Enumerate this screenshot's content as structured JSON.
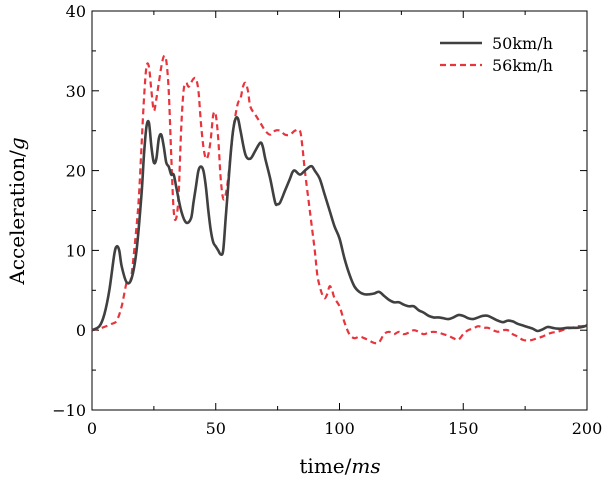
{
  "chart_data": {
    "type": "line",
    "title": "",
    "xlabel": {
      "main": "time/",
      "unit": "ms"
    },
    "ylabel": {
      "main": "Acceleration/",
      "unit": "g"
    },
    "xlim": [
      0,
      200
    ],
    "ylim": [
      -10,
      40
    ],
    "x_ticks": [
      0,
      50,
      100,
      150,
      200
    ],
    "y_ticks": [
      -10,
      0,
      10,
      20,
      30,
      40
    ],
    "x_tick_labels": [
      "0",
      "50",
      "100",
      "150",
      "200"
    ],
    "y_tick_labels": [
      "−10",
      "0",
      "10",
      "20",
      "30",
      "40"
    ],
    "grid": false,
    "legend_position": "top-right",
    "series": [
      {
        "name": "50km/h",
        "color": "#404040",
        "style": "solid",
        "points": [
          [
            0,
            0
          ],
          [
            3,
            0.5
          ],
          [
            5,
            2
          ],
          [
            7,
            5
          ],
          [
            9,
            9.5
          ],
          [
            10,
            10.5
          ],
          [
            11,
            10
          ],
          [
            12,
            8
          ],
          [
            14,
            6
          ],
          [
            16,
            6.5
          ],
          [
            18,
            10
          ],
          [
            20,
            17
          ],
          [
            21,
            22
          ],
          [
            22,
            25.5
          ],
          [
            23,
            26
          ],
          [
            24,
            23
          ],
          [
            25,
            21
          ],
          [
            26,
            21.5
          ],
          [
            27,
            24
          ],
          [
            28,
            24.5
          ],
          [
            29,
            23
          ],
          [
            30,
            21
          ],
          [
            31,
            20.5
          ],
          [
            32,
            19.5
          ],
          [
            33,
            19.5
          ],
          [
            34,
            18
          ],
          [
            36,
            15
          ],
          [
            38,
            13.5
          ],
          [
            40,
            14
          ],
          [
            41,
            16
          ],
          [
            42,
            18
          ],
          [
            43,
            20
          ],
          [
            44,
            20.5
          ],
          [
            45,
            20
          ],
          [
            46,
            18
          ],
          [
            47,
            15
          ],
          [
            48,
            12.5
          ],
          [
            49,
            11
          ],
          [
            50,
            10.5
          ],
          [
            51,
            10
          ],
          [
            52,
            9.5
          ],
          [
            53,
            10
          ],
          [
            54,
            14
          ],
          [
            55,
            18
          ],
          [
            56,
            22
          ],
          [
            57,
            25
          ],
          [
            58,
            26.5
          ],
          [
            59,
            26.5
          ],
          [
            60,
            25
          ],
          [
            62,
            22
          ],
          [
            64,
            21.5
          ],
          [
            66,
            22.5
          ],
          [
            68,
            23.5
          ],
          [
            69,
            23
          ],
          [
            70,
            21.5
          ],
          [
            72,
            19
          ],
          [
            74,
            16
          ],
          [
            75,
            15.8
          ],
          [
            76,
            16
          ],
          [
            78,
            17.5
          ],
          [
            80,
            19
          ],
          [
            81,
            19.8
          ],
          [
            82,
            20
          ],
          [
            84,
            19.5
          ],
          [
            86,
            20
          ],
          [
            88,
            20.5
          ],
          [
            89,
            20.5
          ],
          [
            90,
            20
          ],
          [
            92,
            19
          ],
          [
            94,
            17
          ],
          [
            96,
            15
          ],
          [
            98,
            13
          ],
          [
            100,
            11.5
          ],
          [
            102,
            9
          ],
          [
            104,
            7
          ],
          [
            106,
            5.5
          ],
          [
            108,
            4.8
          ],
          [
            110,
            4.5
          ],
          [
            112,
            4.5
          ],
          [
            114,
            4.6
          ],
          [
            116,
            4.8
          ],
          [
            118,
            4.3
          ],
          [
            120,
            3.8
          ],
          [
            122,
            3.5
          ],
          [
            124,
            3.5
          ],
          [
            126,
            3.2
          ],
          [
            128,
            3
          ],
          [
            130,
            3
          ],
          [
            132,
            2.5
          ],
          [
            134,
            2.2
          ],
          [
            136,
            1.8
          ],
          [
            138,
            1.6
          ],
          [
            140,
            1.6
          ],
          [
            142,
            1.5
          ],
          [
            144,
            1.4
          ],
          [
            146,
            1.6
          ],
          [
            148,
            1.9
          ],
          [
            150,
            1.8
          ],
          [
            152,
            1.5
          ],
          [
            154,
            1.4
          ],
          [
            156,
            1.6
          ],
          [
            158,
            1.8
          ],
          [
            160,
            1.8
          ],
          [
            162,
            1.5
          ],
          [
            164,
            1.2
          ],
          [
            166,
            1
          ],
          [
            168,
            1.2
          ],
          [
            170,
            1.1
          ],
          [
            172,
            0.8
          ],
          [
            174,
            0.6
          ],
          [
            176,
            0.4
          ],
          [
            178,
            0.2
          ],
          [
            180,
            -0.1
          ],
          [
            182,
            0.1
          ],
          [
            184,
            0.4
          ],
          [
            186,
            0.3
          ],
          [
            188,
            0.2
          ],
          [
            190,
            0.2
          ],
          [
            192,
            0.3
          ],
          [
            194,
            0.3
          ],
          [
            196,
            0.3
          ],
          [
            198,
            0.4
          ],
          [
            200,
            0.6
          ]
        ]
      },
      {
        "name": "56km/h",
        "color": "#e8343c",
        "style": "dashed",
        "points": [
          [
            0,
            0
          ],
          [
            4,
            0.3
          ],
          [
            8,
            0.8
          ],
          [
            10,
            1.2
          ],
          [
            12,
            3
          ],
          [
            14,
            6
          ],
          [
            15,
            6
          ],
          [
            16,
            7
          ],
          [
            18,
            13
          ],
          [
            19,
            17
          ],
          [
            20,
            23
          ],
          [
            21,
            29
          ],
          [
            22,
            33
          ],
          [
            23,
            33
          ],
          [
            24,
            30
          ],
          [
            25,
            27.5
          ],
          [
            26,
            29
          ],
          [
            27,
            31
          ],
          [
            28,
            33
          ],
          [
            29,
            34.3
          ],
          [
            30,
            33.8
          ],
          [
            31,
            30
          ],
          [
            32,
            22
          ],
          [
            33,
            15
          ],
          [
            34,
            14
          ],
          [
            35,
            17
          ],
          [
            36,
            25
          ],
          [
            37,
            30
          ],
          [
            38,
            31
          ],
          [
            39,
            30.5
          ],
          [
            40,
            31
          ],
          [
            41,
            31.5
          ],
          [
            42,
            31.5
          ],
          [
            43,
            30
          ],
          [
            44,
            26
          ],
          [
            45,
            23
          ],
          [
            46,
            21.5
          ],
          [
            47,
            22
          ],
          [
            48,
            24
          ],
          [
            49,
            27
          ],
          [
            50,
            27
          ],
          [
            51,
            24
          ],
          [
            52,
            19
          ],
          [
            53,
            16.5
          ],
          [
            54,
            17
          ],
          [
            55,
            19
          ],
          [
            56,
            22
          ],
          [
            57,
            25
          ],
          [
            58,
            27
          ],
          [
            59,
            28.5
          ],
          [
            60,
            29
          ],
          [
            61,
            30.5
          ],
          [
            62,
            31
          ],
          [
            63,
            30
          ],
          [
            64,
            28
          ],
          [
            66,
            27
          ],
          [
            68,
            26
          ],
          [
            70,
            25
          ],
          [
            72,
            24.5
          ],
          [
            74,
            25
          ],
          [
            76,
            25
          ],
          [
            78,
            24.5
          ],
          [
            80,
            24.5
          ],
          [
            82,
            25
          ],
          [
            84,
            25
          ],
          [
            85,
            23
          ],
          [
            86,
            20
          ],
          [
            88,
            15
          ],
          [
            90,
            10
          ],
          [
            91,
            7
          ],
          [
            92,
            5.5
          ],
          [
            93,
            4.5
          ],
          [
            94,
            4
          ],
          [
            95,
            4.5
          ],
          [
            96,
            5.5
          ],
          [
            97,
            5
          ],
          [
            98,
            4
          ],
          [
            100,
            3
          ],
          [
            102,
            1
          ],
          [
            104,
            -0.5
          ],
          [
            106,
            -1
          ],
          [
            108,
            -0.8
          ],
          [
            110,
            -1
          ],
          [
            112,
            -1.3
          ],
          [
            114,
            -1.6
          ],
          [
            116,
            -1.5
          ],
          [
            118,
            -0.5
          ],
          [
            120,
            -0.2
          ],
          [
            122,
            -0.5
          ],
          [
            124,
            -0.2
          ],
          [
            126,
            -0.5
          ],
          [
            128,
            -0.3
          ],
          [
            130,
            0
          ],
          [
            132,
            -0.2
          ],
          [
            134,
            -0.5
          ],
          [
            136,
            -0.3
          ],
          [
            138,
            -0.2
          ],
          [
            140,
            -0.3
          ],
          [
            142,
            -0.5
          ],
          [
            144,
            -0.7
          ],
          [
            146,
            -1
          ],
          [
            148,
            -1.2
          ],
          [
            150,
            -0.5
          ],
          [
            152,
            0
          ],
          [
            154,
            0.2
          ],
          [
            156,
            0.5
          ],
          [
            158,
            0.3
          ],
          [
            160,
            0.3
          ],
          [
            162,
            0
          ],
          [
            164,
            -0.2
          ],
          [
            166,
            0
          ],
          [
            168,
            0
          ],
          [
            170,
            -0.5
          ],
          [
            172,
            -0.8
          ],
          [
            174,
            -1.2
          ],
          [
            176,
            -1.3
          ],
          [
            178,
            -1.2
          ],
          [
            180,
            -1
          ],
          [
            182,
            -0.8
          ],
          [
            184,
            -0.5
          ],
          [
            186,
            -0.3
          ],
          [
            188,
            -0.2
          ],
          [
            190,
            0
          ],
          [
            192,
            0.2
          ],
          [
            194,
            0.3
          ],
          [
            196,
            0.5
          ],
          [
            198,
            0.5
          ],
          [
            200,
            0.7
          ]
        ]
      }
    ]
  }
}
